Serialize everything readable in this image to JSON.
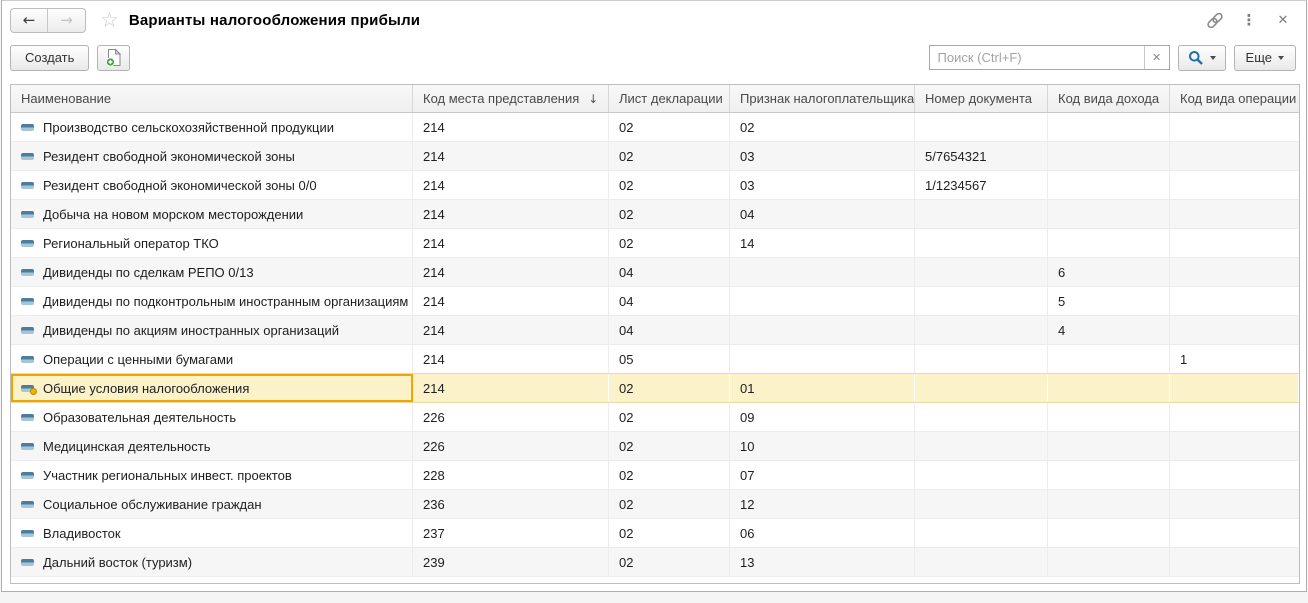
{
  "window": {
    "title": "Варианты налогообложения прибыли"
  },
  "titlebar": {
    "back_arrow": "←",
    "forward_arrow": "→",
    "favorite_star": "☆",
    "more_dots": "⋮",
    "close_glyph": "✕"
  },
  "toolbar": {
    "create_label": "Создать",
    "search_placeholder": "Поиск (Ctrl+F)",
    "search_clear_glyph": "✕",
    "more_label": "Еще"
  },
  "table": {
    "columns": [
      {
        "label": "Наименование"
      },
      {
        "label": "Код места представления",
        "sort": "↓"
      },
      {
        "label": "Лист декларации"
      },
      {
        "label": "Признак налогоплательщика"
      },
      {
        "label": "Номер документа"
      },
      {
        "label": "Код вида дохода"
      },
      {
        "label": "Код вида операции"
      }
    ],
    "rows": [
      {
        "cells": [
          "Производство сельскохозяйственной продукции",
          "214",
          "02",
          "02",
          "",
          "",
          ""
        ]
      },
      {
        "cells": [
          "Резидент свободной экономической зоны",
          "214",
          "02",
          "03",
          "5/7654321",
          "",
          ""
        ]
      },
      {
        "cells": [
          "Резидент свободной экономической зоны 0/0",
          "214",
          "02",
          "03",
          "1/1234567",
          "",
          ""
        ]
      },
      {
        "cells": [
          "Добыча на новом морском месторождении",
          "214",
          "02",
          "04",
          "",
          "",
          ""
        ]
      },
      {
        "cells": [
          "Региональный оператор ТКО",
          "214",
          "02",
          "14",
          "",
          "",
          ""
        ]
      },
      {
        "cells": [
          "Дивиденды по сделкам РЕПО 0/13",
          "214",
          "04",
          "",
          "",
          "6",
          ""
        ]
      },
      {
        "cells": [
          "Дивиденды по подконтрольным иностранным организациям",
          "214",
          "04",
          "",
          "",
          "5",
          ""
        ]
      },
      {
        "cells": [
          "Дивиденды по акциям иностранных организаций",
          "214",
          "04",
          "",
          "",
          "4",
          ""
        ]
      },
      {
        "cells": [
          "Операции с ценными бумагами",
          "214",
          "05",
          "",
          "",
          "",
          "1"
        ]
      },
      {
        "cells": [
          "Общие условия налогообложения",
          "214",
          "02",
          "01",
          "",
          "",
          ""
        ],
        "selected": true,
        "predefined": true
      },
      {
        "cells": [
          "Образовательная деятельность",
          "226",
          "02",
          "09",
          "",
          "",
          ""
        ]
      },
      {
        "cells": [
          "Медицинская деятельность",
          "226",
          "02",
          "10",
          "",
          "",
          ""
        ]
      },
      {
        "cells": [
          "Участник региональных инвест. проектов",
          "228",
          "02",
          "07",
          "",
          "",
          ""
        ]
      },
      {
        "cells": [
          "Социальное обслуживание граждан",
          "236",
          "02",
          "12",
          "",
          "",
          ""
        ]
      },
      {
        "cells": [
          "Владивосток",
          "237",
          "02",
          "06",
          "",
          "",
          ""
        ]
      },
      {
        "cells": [
          "Дальний восток (туризм)",
          "239",
          "02",
          "13",
          "",
          "",
          ""
        ]
      }
    ]
  },
  "colors": {
    "selection_bg": "#fcf2ca",
    "selection_outline": "#f0a500",
    "row_icon_blue": "#4e7d9b",
    "predefined_dot": "#f0b400",
    "copy_plus_green": "#2ea52e",
    "search_icon_blue": "#1f6fb5"
  }
}
